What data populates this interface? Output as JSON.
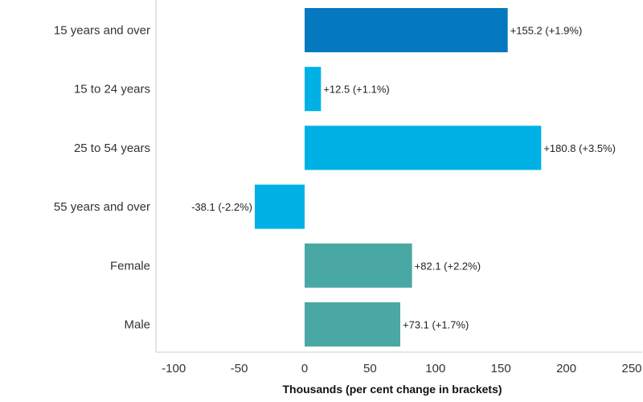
{
  "chart_data": {
    "type": "bar",
    "orientation": "horizontal",
    "categories": [
      "15 years and over",
      "15 to 24 years",
      "25 to 54 years",
      "55 years and over",
      "Female",
      "Male"
    ],
    "values": [
      155.2,
      12.5,
      180.8,
      -38.1,
      82.1,
      73.1
    ],
    "value_labels": [
      "+155.2 (+1.9%)",
      "+12.5 (+1.1%)",
      "+180.8 (+3.5%)",
      "-38.1 (-2.2%)",
      "+82.1 (+2.2%)",
      "+73.1 (+1.7%)"
    ],
    "bar_colors": [
      "#0579c0",
      "#00b1e6",
      "#00b1e6",
      "#00b1e6",
      "#4aa8a4",
      "#4aa8a4"
    ],
    "xlabel": "Thousands (per cent change in brackets)",
    "ylabel": "",
    "xlim": [
      -100,
      250
    ],
    "xticks": [
      -100,
      -50,
      0,
      50,
      100,
      150,
      200,
      250
    ],
    "xtick_labels": [
      "-100",
      "-50",
      "0",
      "50",
      "100",
      "150",
      "200",
      "250"
    ],
    "grid": false,
    "axis_color": "#cccccc"
  }
}
